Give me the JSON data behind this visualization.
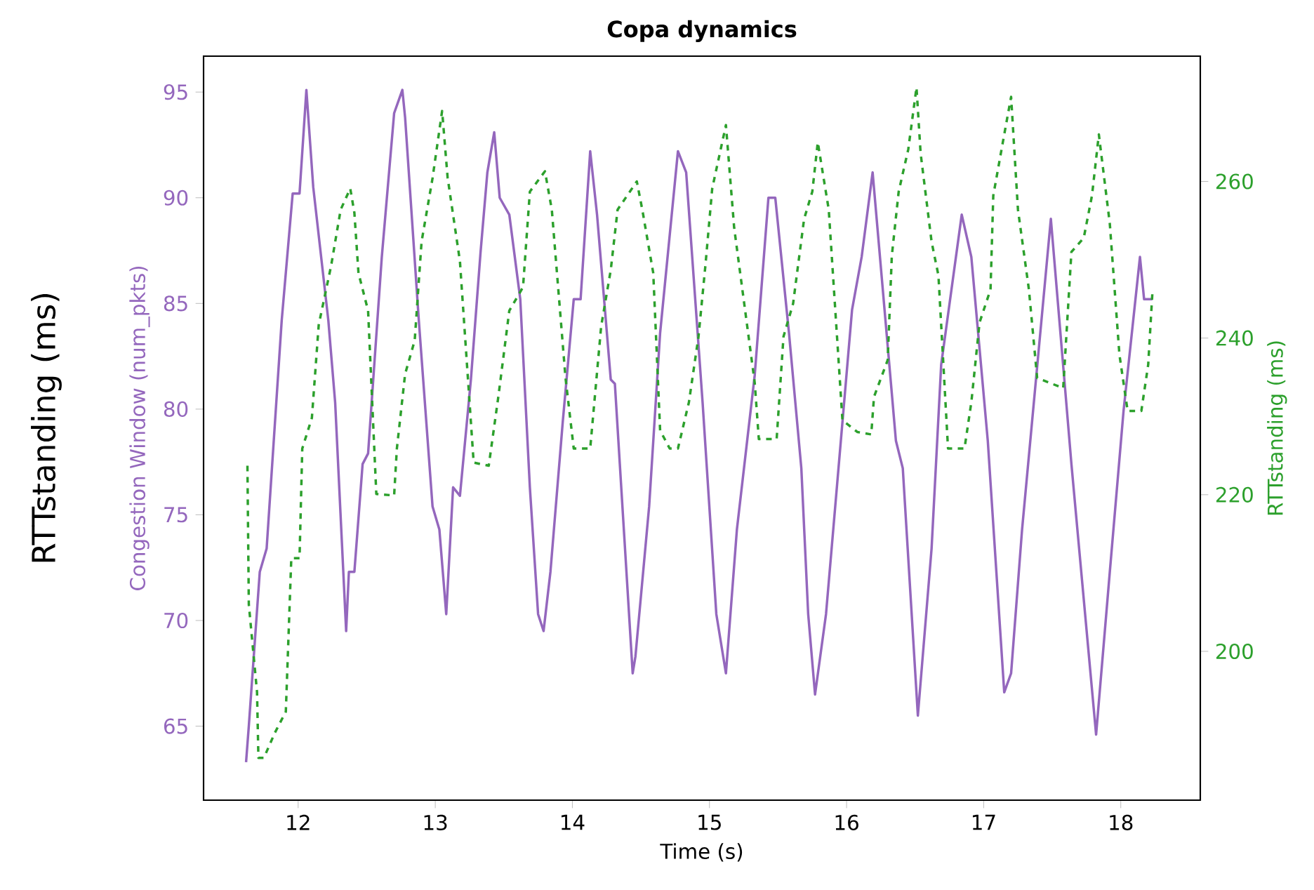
{
  "chart_data": {
    "type": "line",
    "title": "Copa dynamics",
    "xlabel": "Time (s)",
    "ylabel": "Congestion Window (num_pkts)",
    "y2label": "RTTstanding (ms)",
    "annotations": [
      "RTTstanding (ms)"
    ],
    "xlim": [
      11.31,
      18.58
    ],
    "ylim": [
      61.5,
      96.7
    ],
    "y2lim": [
      181,
      276
    ],
    "xticks": [
      12,
      13,
      14,
      15,
      16,
      17,
      18
    ],
    "yticks": [
      65,
      70,
      75,
      80,
      85,
      90,
      95
    ],
    "y2ticks": [
      200,
      220,
      240,
      260
    ],
    "grid": false,
    "marker": "none",
    "series": [
      {
        "color": "#9467bd",
        "line_style": "solid",
        "x": [
          11.62,
          11.64,
          11.72,
          11.77,
          11.88,
          11.96,
          12.01,
          12.06,
          12.11,
          12.22,
          12.27,
          12.35,
          12.37,
          12.41,
          12.47,
          12.51,
          12.61,
          12.7,
          12.76,
          12.78,
          12.88,
          12.98,
          13.03,
          13.08,
          13.13,
          13.18,
          13.26,
          13.33,
          13.38,
          13.43,
          13.47,
          13.54,
          13.62,
          13.69,
          13.75,
          13.79,
          13.84,
          13.93,
          14.01,
          14.06,
          14.13,
          14.18,
          14.28,
          14.31,
          14.44,
          14.46,
          14.56,
          14.64,
          14.77,
          14.83,
          14.95,
          15.05,
          15.12,
          15.2,
          15.33,
          15.43,
          15.48,
          15.58,
          15.67,
          15.72,
          15.77,
          15.85,
          16.04,
          16.11,
          16.19,
          16.36,
          16.41,
          16.52,
          16.62,
          16.69,
          16.84,
          16.91,
          17.03,
          17.15,
          17.2,
          17.28,
          17.49,
          17.64,
          17.82,
          17.92,
          18.02,
          18.14,
          18.17,
          18.23
        ],
        "values": [
          63.3,
          65,
          72.3,
          73.4,
          84.2,
          90.2,
          90.2,
          95.1,
          90.5,
          84.2,
          80.3,
          69.5,
          72.3,
          72.3,
          77.4,
          77.9,
          87.2,
          94,
          95.1,
          93.8,
          84.2,
          75.4,
          74.3,
          70.3,
          76.3,
          75.9,
          81.4,
          87.4,
          91.2,
          93.1,
          90,
          89.2,
          85.2,
          76.3,
          70.3,
          69.5,
          72.3,
          79.4,
          85.2,
          85.2,
          92.2,
          89.2,
          81.4,
          81.2,
          67.5,
          68.3,
          75.4,
          83.6,
          92.2,
          91.2,
          80.3,
          70.3,
          67.5,
          74.3,
          81.6,
          90,
          90,
          83.6,
          77.2,
          70.3,
          66.5,
          70.3,
          84.7,
          87.2,
          91.2,
          78.5,
          77.2,
          65.5,
          73.4,
          82.1,
          89.2,
          87.2,
          78.5,
          66.6,
          67.5,
          74.3,
          89,
          77.4,
          64.6,
          72.3,
          79.9,
          87.2,
          85.2,
          85.2
        ]
      },
      {
        "color": "#2ca02c",
        "line_style": "dashed",
        "axis": "y2",
        "x": [
          11.63,
          11.64,
          11.7,
          11.71,
          11.75,
          11.83,
          11.91,
          11.95,
          12.01,
          12.03,
          12.1,
          12.15,
          12.24,
          12.31,
          12.38,
          12.41,
          12.44,
          12.51,
          12.57,
          12.7,
          12.72,
          12.78,
          12.85,
          12.9,
          12.98,
          13.05,
          13.09,
          13.18,
          13.28,
          13.39,
          13.46,
          13.54,
          13.64,
          13.69,
          13.8,
          13.85,
          13.95,
          14.01,
          14.13,
          14.21,
          14.28,
          14.33,
          14.47,
          14.51,
          14.59,
          14.64,
          14.71,
          14.77,
          14.85,
          14.92,
          14.97,
          15.02,
          15.12,
          15.18,
          15.33,
          15.36,
          15.49,
          15.54,
          15.61,
          15.69,
          15.75,
          15.79,
          15.87,
          15.97,
          16.08,
          16.18,
          16.2,
          16.3,
          16.33,
          16.38,
          16.45,
          16.51,
          16.54,
          16.62,
          16.67,
          16.71,
          16.74,
          16.86,
          16.91,
          16.97,
          17.05,
          17.07,
          17.15,
          17.2,
          17.25,
          17.33,
          17.39,
          17.48,
          17.58,
          17.64,
          17.73,
          17.79,
          17.84,
          17.92,
          17.99,
          18.05,
          18.15,
          18.2,
          18.23
        ],
        "values": [
          223.7,
          206,
          194.8,
          186.4,
          186.4,
          189.6,
          192.3,
          211.9,
          211.9,
          225.9,
          229.8,
          241.7,
          249.2,
          256.4,
          259.1,
          256,
          248.3,
          243.5,
          220.1,
          219.9,
          225.9,
          235.4,
          239.7,
          252.3,
          260.4,
          269,
          260.5,
          249.8,
          224.1,
          223.7,
          232.5,
          243.5,
          246.5,
          258.7,
          261.3,
          256.4,
          234.9,
          225.9,
          225.9,
          241.5,
          248.7,
          256.4,
          260,
          256.4,
          248.3,
          228.2,
          225.9,
          225.9,
          231.8,
          240.2,
          249.2,
          259.1,
          267.2,
          254.1,
          234.3,
          227.1,
          227.1,
          240.2,
          244.4,
          255.2,
          258.7,
          265,
          256.4,
          229.5,
          228,
          227.7,
          232.5,
          237.2,
          250.5,
          258.7,
          264.1,
          272,
          263.6,
          252.3,
          248,
          235.4,
          225.9,
          225.9,
          231.8,
          242,
          246.2,
          258.2,
          266,
          270.8,
          256.4,
          246.2,
          234.9,
          234.3,
          233.6,
          251,
          252.8,
          258.2,
          266,
          254.6,
          237.9,
          230.7,
          230.7,
          236.6,
          245.6
        ]
      }
    ]
  }
}
